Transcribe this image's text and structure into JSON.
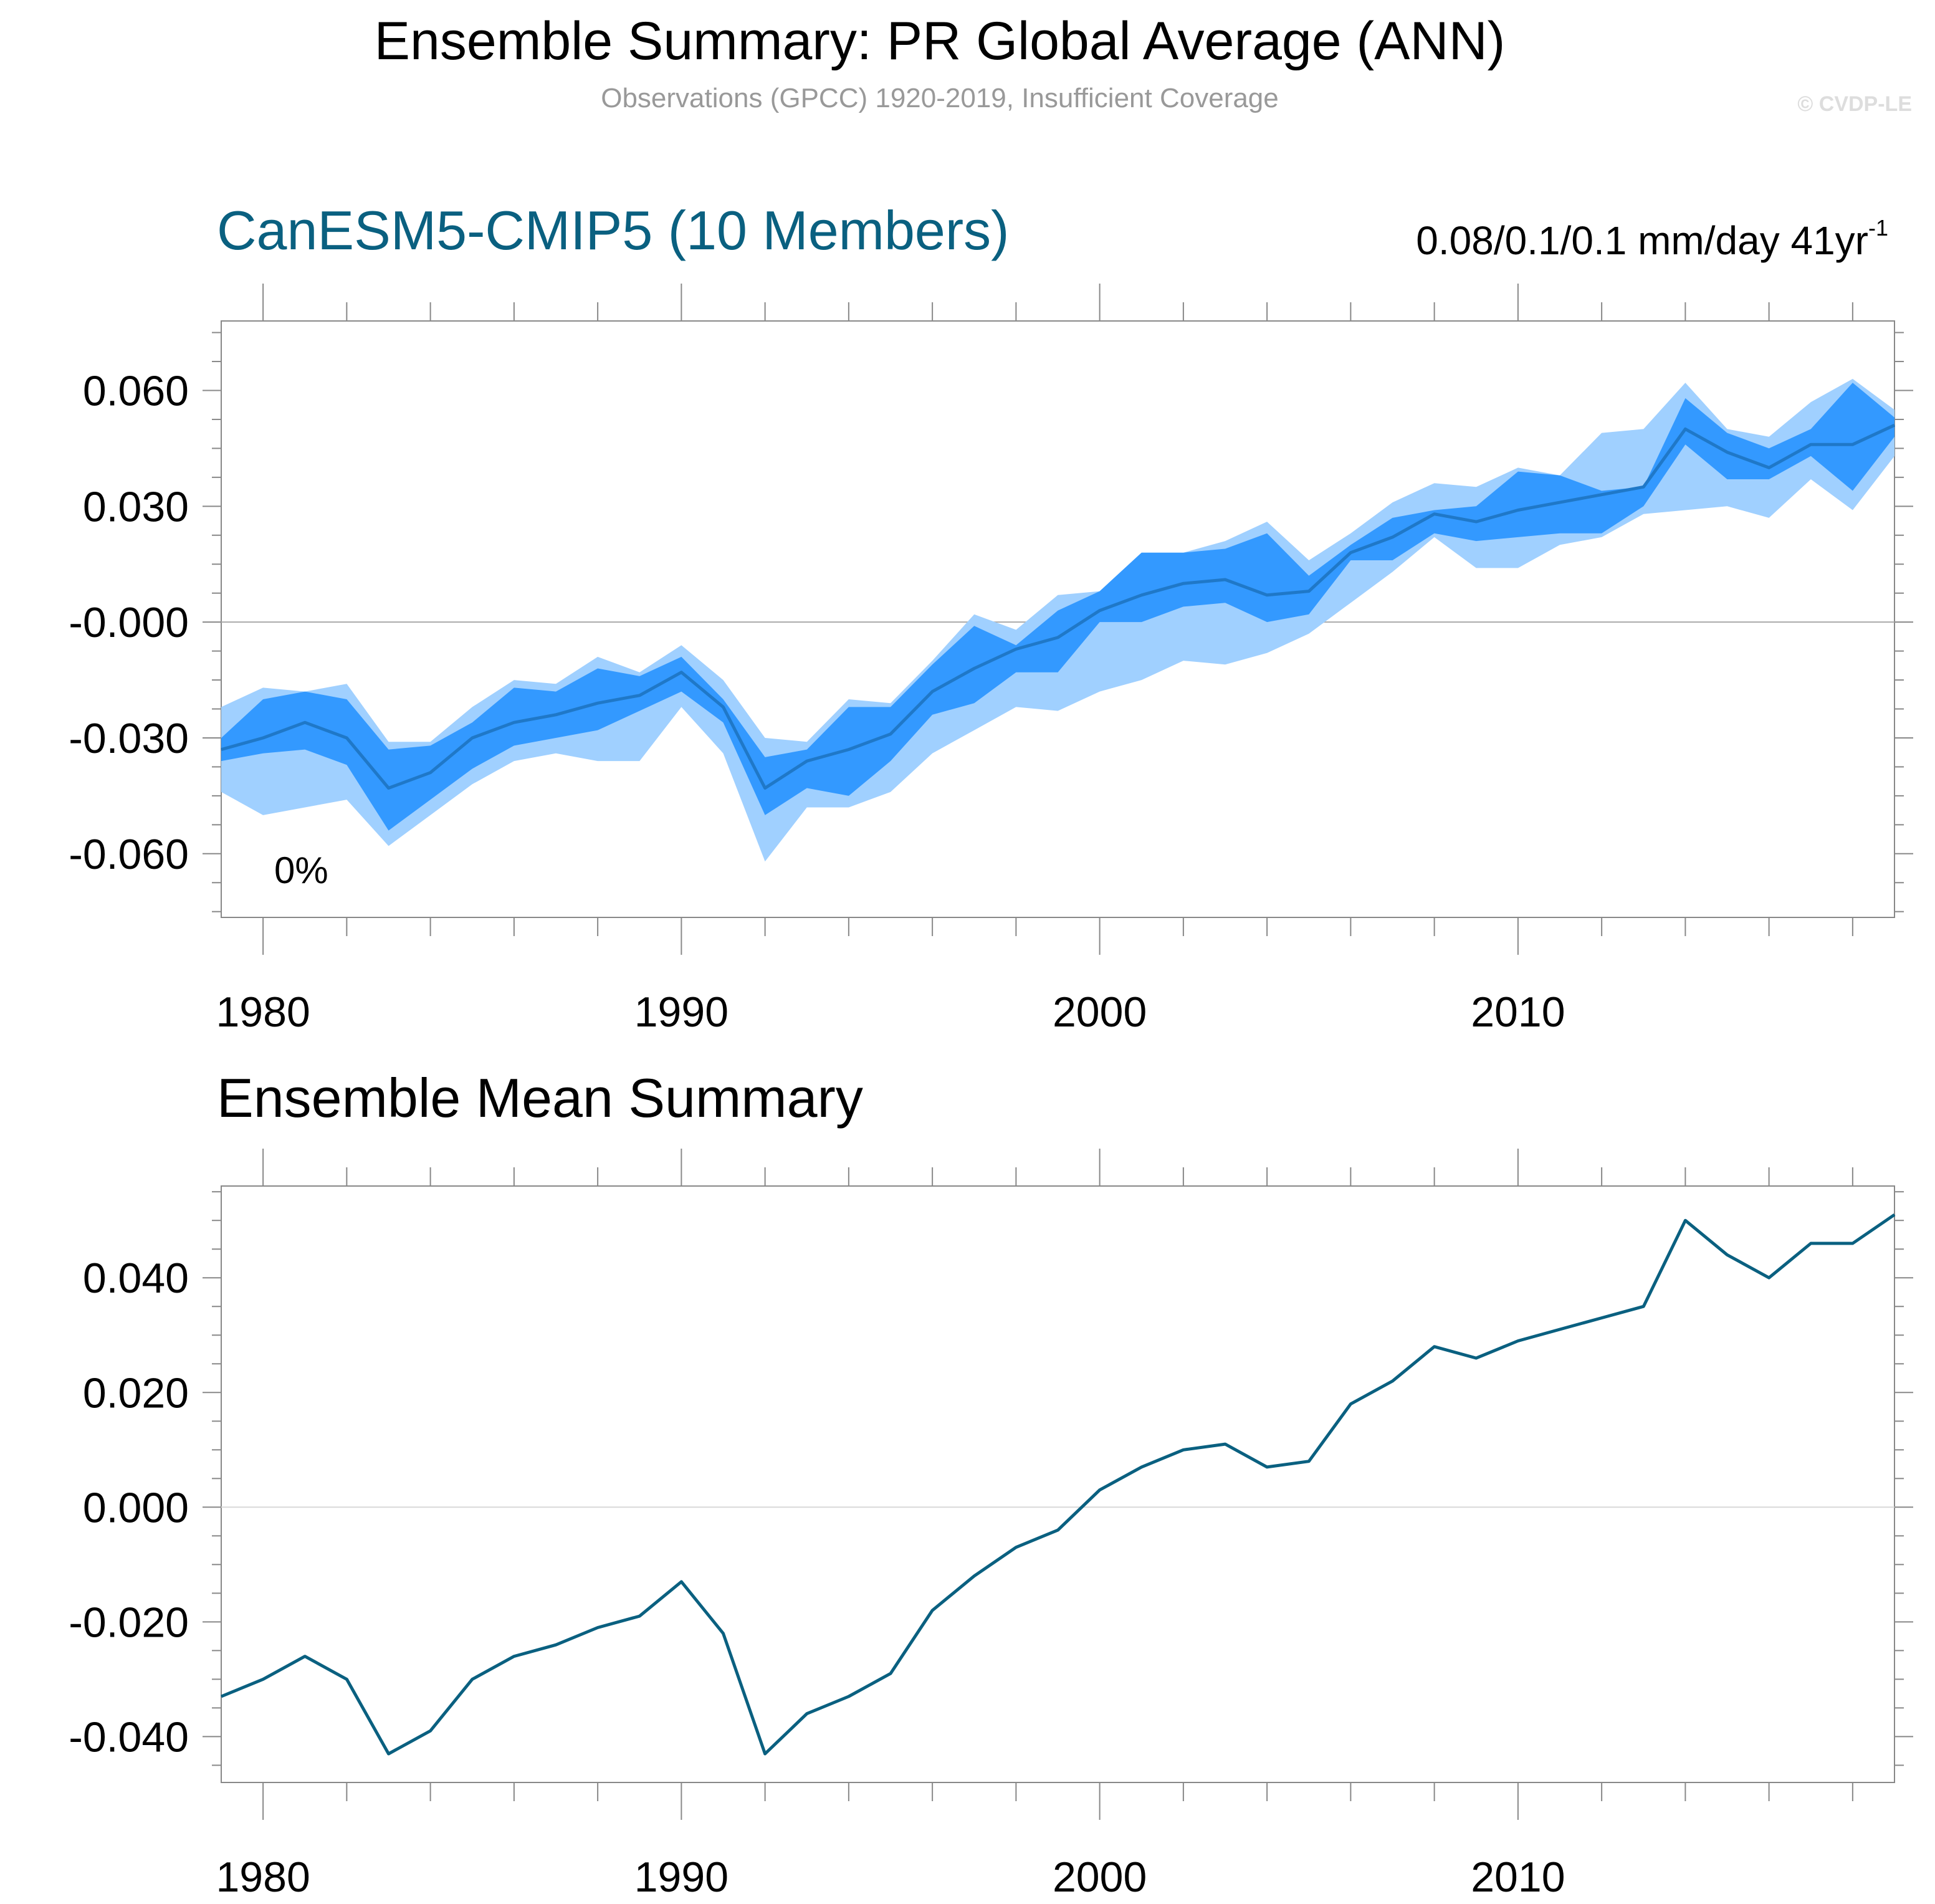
{
  "header": {
    "title": "Ensemble Summary: PR Global Average (ANN)",
    "subtitle": "Observations (GPCC) 1920-2019, Insufficient Coverage",
    "copyright": "© CVDP-LE"
  },
  "colors": {
    "band_outer": "#a0d0ff",
    "band_inner": "#3399ff",
    "mean_line_top": "#1f78c8",
    "mean_line_bottom": "#0a6080",
    "model_title": "#0a6080",
    "axis": "#888888",
    "zero_line": "#aaaaaa"
  },
  "chart_data": [
    {
      "type": "area",
      "title": "CanESM5-CMIP5 (10 Members)",
      "trend_label": "0.08/0.1/0.1 mm/day 41yr",
      "trend_superscript": "-1",
      "annotation": "0%",
      "x": [
        1979,
        1980,
        1981,
        1982,
        1983,
        1984,
        1985,
        1986,
        1987,
        1988,
        1989,
        1990,
        1991,
        1992,
        1993,
        1994,
        1995,
        1996,
        1997,
        1998,
        1999,
        2000,
        2001,
        2002,
        2003,
        2004,
        2005,
        2006,
        2007,
        2008,
        2009,
        2010,
        2011,
        2012,
        2013,
        2014,
        2015,
        2016,
        2017,
        2018,
        2019
      ],
      "xlim": [
        1979,
        2019
      ],
      "ylim": [
        -0.0765,
        0.078
      ],
      "yticks": [
        0.06,
        0.03,
        0.0,
        -0.03,
        -0.06
      ],
      "ytick_labels": [
        "0.060",
        "0.030",
        "-0.000",
        "-0.030",
        "-0.060"
      ],
      "xticks": [
        1980,
        1990,
        2000,
        2010
      ],
      "xtick_labels": [
        "1980",
        "1990",
        "2000",
        "2010"
      ],
      "series": [
        {
          "role": "min-max range",
          "upper": [
            -0.022,
            -0.017,
            -0.018,
            -0.016,
            -0.031,
            -0.031,
            -0.022,
            -0.015,
            -0.016,
            -0.009,
            -0.013,
            -0.006,
            -0.015,
            -0.03,
            -0.031,
            -0.02,
            -0.021,
            -0.01,
            0.002,
            -0.002,
            0.007,
            0.008,
            0.018,
            0.018,
            0.021,
            0.026,
            0.016,
            0.023,
            0.031,
            0.036,
            0.035,
            0.04,
            0.038,
            0.049,
            0.05,
            0.062,
            0.05,
            0.048,
            0.057,
            0.063,
            0.055
          ],
          "lower": [
            -0.044,
            -0.05,
            -0.048,
            -0.046,
            -0.058,
            -0.05,
            -0.042,
            -0.036,
            -0.034,
            -0.036,
            -0.036,
            -0.022,
            -0.034,
            -0.062,
            -0.048,
            -0.048,
            -0.044,
            -0.034,
            -0.028,
            -0.022,
            -0.023,
            -0.018,
            -0.015,
            -0.01,
            -0.011,
            -0.008,
            -0.003,
            0.005,
            0.013,
            0.022,
            0.014,
            0.014,
            0.02,
            0.022,
            0.028,
            0.029,
            0.03,
            0.027,
            0.037,
            0.029,
            0.043
          ]
        },
        {
          "role": "10th-90th percentile",
          "upper": [
            -0.03,
            -0.02,
            -0.018,
            -0.02,
            -0.033,
            -0.032,
            -0.026,
            -0.017,
            -0.018,
            -0.012,
            -0.014,
            -0.009,
            -0.02,
            -0.035,
            -0.033,
            -0.022,
            -0.022,
            -0.011,
            -0.001,
            -0.006,
            0.003,
            0.008,
            0.018,
            0.018,
            0.019,
            0.023,
            0.012,
            0.02,
            0.027,
            0.029,
            0.03,
            0.039,
            0.038,
            0.034,
            0.035,
            0.058,
            0.049,
            0.045,
            0.05,
            0.062,
            0.053
          ],
          "lower": [
            -0.036,
            -0.034,
            -0.033,
            -0.037,
            -0.054,
            -0.046,
            -0.038,
            -0.032,
            -0.03,
            -0.028,
            -0.023,
            -0.018,
            -0.026,
            -0.05,
            -0.043,
            -0.045,
            -0.036,
            -0.024,
            -0.021,
            -0.013,
            -0.013,
            0.0,
            0.0,
            0.004,
            0.005,
            0.0,
            0.002,
            0.016,
            0.016,
            0.023,
            0.021,
            0.022,
            0.023,
            0.023,
            0.03,
            0.046,
            0.037,
            0.037,
            0.043,
            0.034,
            0.048
          ]
        },
        {
          "role": "ensemble mean",
          "values": [
            -0.033,
            -0.03,
            -0.026,
            -0.03,
            -0.043,
            -0.039,
            -0.03,
            -0.026,
            -0.024,
            -0.021,
            -0.019,
            -0.013,
            -0.022,
            -0.043,
            -0.036,
            -0.033,
            -0.029,
            -0.018,
            -0.012,
            -0.007,
            -0.004,
            0.003,
            0.007,
            0.01,
            0.011,
            0.007,
            0.008,
            0.018,
            0.022,
            0.028,
            0.026,
            0.029,
            0.031,
            0.033,
            0.035,
            0.05,
            0.044,
            0.04,
            0.046,
            0.046,
            0.051
          ]
        }
      ]
    },
    {
      "type": "line",
      "title": "Ensemble Mean Summary",
      "x": [
        1979,
        1980,
        1981,
        1982,
        1983,
        1984,
        1985,
        1986,
        1987,
        1988,
        1989,
        1990,
        1991,
        1992,
        1993,
        1994,
        1995,
        1996,
        1997,
        1998,
        1999,
        2000,
        2001,
        2002,
        2003,
        2004,
        2005,
        2006,
        2007,
        2008,
        2009,
        2010,
        2011,
        2012,
        2013,
        2014,
        2015,
        2016,
        2017,
        2018,
        2019
      ],
      "xlim": [
        1979,
        2019
      ],
      "ylim": [
        -0.048,
        0.056
      ],
      "yticks": [
        0.04,
        0.02,
        0.0,
        -0.02,
        -0.04
      ],
      "ytick_labels": [
        "0.040",
        "0.020",
        "0.000",
        "-0.020",
        "-0.040"
      ],
      "xticks": [
        1980,
        1990,
        2000,
        2010
      ],
      "xtick_labels": [
        "1980",
        "1990",
        "2000",
        "2010"
      ],
      "series": [
        {
          "role": "ensemble mean",
          "values": [
            -0.033,
            -0.03,
            -0.026,
            -0.03,
            -0.043,
            -0.039,
            -0.03,
            -0.026,
            -0.024,
            -0.021,
            -0.019,
            -0.013,
            -0.022,
            -0.043,
            -0.036,
            -0.033,
            -0.029,
            -0.018,
            -0.012,
            -0.007,
            -0.004,
            0.003,
            0.007,
            0.01,
            0.011,
            0.007,
            0.008,
            0.018,
            0.022,
            0.028,
            0.026,
            0.029,
            0.031,
            0.033,
            0.035,
            0.05,
            0.044,
            0.04,
            0.046,
            0.046,
            0.051
          ]
        }
      ]
    }
  ]
}
